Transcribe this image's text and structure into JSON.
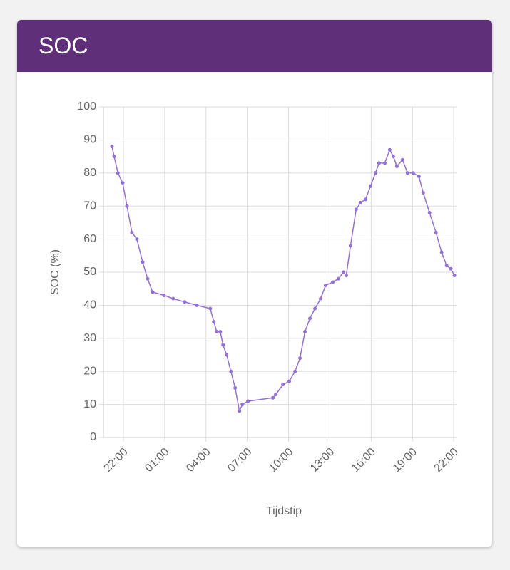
{
  "chart_data": {
    "type": "line",
    "title": "SOC",
    "xlabel": "Tijdstip",
    "ylabel": "SOC (%)",
    "x": [
      21.17,
      21.33,
      21.6,
      21.95,
      22.26,
      22.62,
      22.98,
      23.4,
      23.76,
      24.12,
      24.95,
      25.62,
      26.45,
      27.33,
      28.31,
      28.57,
      28.78,
      29.04,
      29.24,
      29.5,
      29.81,
      30.12,
      30.43,
      30.64,
      31.05,
      32.86,
      33.07,
      33.59,
      34.05,
      34.47,
      34.83,
      35.19,
      35.55,
      35.92,
      36.33,
      36.69,
      37.21,
      37.62,
      37.99,
      38.19,
      38.5,
      38.91,
      39.22,
      39.59,
      39.95,
      40.31,
      40.57,
      40.99,
      41.35,
      41.61,
      41.87,
      42.28,
      42.64,
      43.05,
      43.47,
      43.78,
      44.24,
      44.71,
      45.12,
      45.48,
      45.79,
      46.05
    ],
    "series": [
      {
        "name": "SOC",
        "color": "#9370db",
        "values": [
          88,
          85,
          80,
          77,
          70,
          62,
          60,
          53,
          48,
          44,
          43,
          42,
          41,
          40,
          39,
          35,
          32,
          32,
          28,
          25,
          20,
          15,
          8,
          10,
          11,
          12,
          13,
          16,
          17,
          20,
          24,
          32,
          36,
          39,
          42,
          46,
          47,
          48,
          50,
          49,
          58,
          69,
          71,
          72,
          76,
          80,
          83,
          83,
          87,
          85,
          82,
          84,
          80,
          80,
          79,
          74,
          68,
          62,
          56,
          52,
          51,
          49
        ]
      }
    ],
    "xlim": [
      20.55,
      46.2
    ],
    "xticks": [
      {
        "value": 22,
        "label": "22:00"
      },
      {
        "value": 25,
        "label": "01:00"
      },
      {
        "value": 28,
        "label": "04:00"
      },
      {
        "value": 31,
        "label": "07:00"
      },
      {
        "value": 34,
        "label": "10:00"
      },
      {
        "value": 37,
        "label": "13:00"
      },
      {
        "value": 40,
        "label": "16:00"
      },
      {
        "value": 43,
        "label": "19:00"
      },
      {
        "value": 46,
        "label": "22:00"
      }
    ],
    "ylim": [
      0,
      100
    ],
    "yticks": [
      0,
      10,
      20,
      30,
      40,
      50,
      60,
      70,
      80,
      90,
      100
    ],
    "grid": true
  }
}
